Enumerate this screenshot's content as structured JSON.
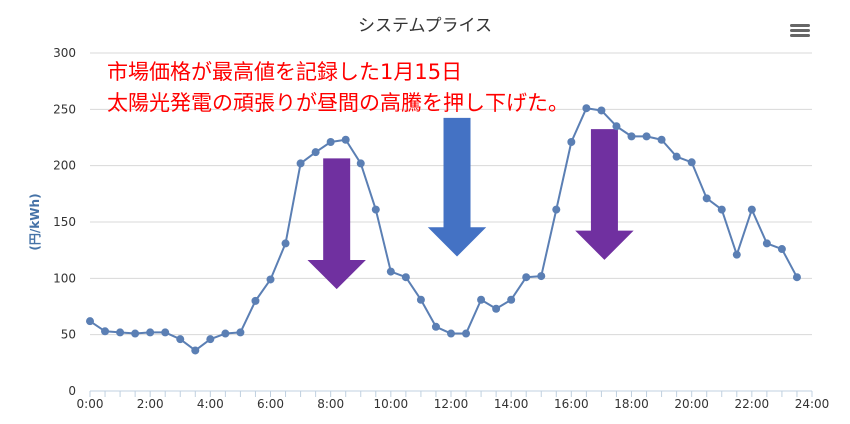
{
  "chart_data": {
    "type": "line",
    "title": "システムプライス",
    "ylabel": "(円/kWh)",
    "xlabel": "",
    "ylim": [
      0,
      300
    ],
    "y_ticks": [
      0,
      50,
      100,
      150,
      200,
      250,
      300
    ],
    "x_tick_labels": [
      "0:00",
      "2:00",
      "4:00",
      "6:00",
      "8:00",
      "10:00",
      "12:00",
      "14:00",
      "16:00",
      "18:00",
      "20:00",
      "22:00",
      "24:00"
    ],
    "x_unit": "hours",
    "grid": true,
    "legend": "none",
    "series": [
      {
        "color": "#5b7fb4",
        "x": [
          0,
          0.5,
          1,
          1.5,
          2,
          2.5,
          3,
          3.5,
          4,
          4.5,
          5,
          5.5,
          6,
          6.5,
          7,
          7.5,
          8,
          8.5,
          9,
          9.5,
          10,
          10.5,
          11,
          11.5,
          12,
          12.5,
          13,
          13.5,
          14,
          14.5,
          15,
          15.5,
          16,
          16.5,
          17,
          17.5,
          18,
          18.5,
          19,
          19.5,
          20,
          20.5,
          21,
          21.5,
          22,
          22.5,
          23,
          23.5
        ],
        "values": [
          62,
          53,
          52,
          51,
          52,
          52,
          46,
          36,
          46,
          51,
          52,
          80,
          99,
          131,
          202,
          212,
          221,
          223,
          202,
          161,
          106,
          101,
          81,
          57,
          51,
          51,
          81,
          73,
          81,
          101,
          102,
          161,
          221,
          251,
          249,
          235,
          226,
          226,
          223,
          208,
          203,
          171,
          161,
          121,
          161,
          131,
          126,
          101
        ]
      }
    ],
    "annotations": [
      {
        "text": "市場価格が最高値を記録した1月15日",
        "color": "#ff0000"
      },
      {
        "text": "太陽光発電の頑張りが昼間の高騰を押し下げた。",
        "color": "#ff0000"
      }
    ],
    "arrows": [
      {
        "x_center": 8.2,
        "y_top": 206,
        "y_tip": 91,
        "color": "#7030A0"
      },
      {
        "x_center": 12.2,
        "y_top": 242,
        "y_tip": 120,
        "color": "#4472C4"
      },
      {
        "x_center": 17.1,
        "y_top": 232,
        "y_tip": 117,
        "color": "#7030A0"
      }
    ]
  },
  "menu": {
    "icon": "hamburger-menu-icon"
  }
}
